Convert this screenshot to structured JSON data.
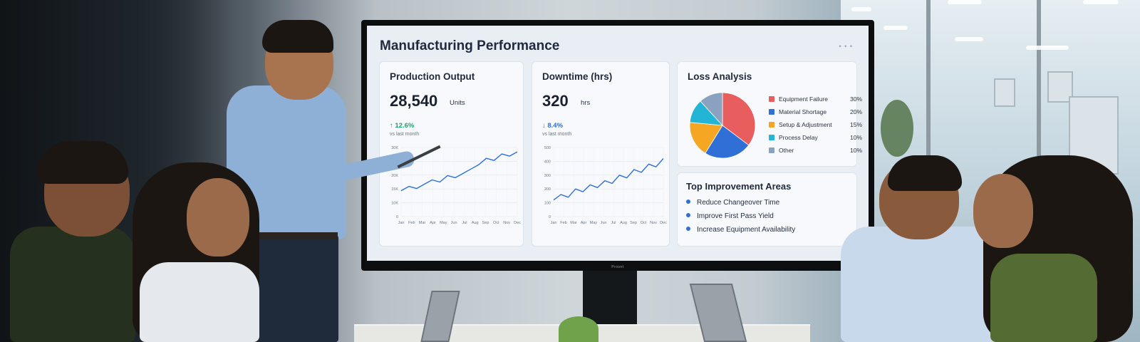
{
  "dashboard": {
    "title": "Manufacturing Performance",
    "brand": "Prosnt",
    "production": {
      "title": "Production Output",
      "value": "28,540",
      "unit": "Units",
      "delta": "↑ 12.6%",
      "delta_note": "vs last month",
      "y_ticks": [
        "30K",
        "25K",
        "20K",
        "15K",
        "10K",
        "0"
      ],
      "months": [
        "Jan",
        "Feb",
        "Mar",
        "Apr",
        "May",
        "Jun",
        "Jul",
        "Aug",
        "Sep",
        "Oct",
        "Nov",
        "Dec"
      ],
      "series": [
        12,
        14,
        13,
        15,
        17,
        16,
        19,
        18,
        20,
        22,
        24,
        27,
        26,
        29,
        28,
        30
      ]
    },
    "downtime": {
      "title": "Downtime (hrs)",
      "value": "320",
      "unit": "hrs",
      "delta": "↓ 8.4%",
      "delta_note": "vs last month",
      "y_ticks": [
        "500",
        "400",
        "300",
        "200",
        "100",
        "0"
      ],
      "months": [
        "Jan",
        "Feb",
        "Mar",
        "Apr",
        "May",
        "Jun",
        "Jul",
        "Aug",
        "Sep",
        "Oct",
        "Nov",
        "Dec"
      ],
      "series": [
        120,
        160,
        140,
        200,
        180,
        230,
        210,
        260,
        240,
        300,
        280,
        340,
        320,
        380,
        360,
        420
      ]
    },
    "loss": {
      "title": "Loss Analysis",
      "items": [
        {
          "label": "Equipment Failure",
          "value": "30%",
          "pct": 30,
          "color": "#e85d5d"
        },
        {
          "label": "Material Shortage",
          "value": "20%",
          "pct": 20,
          "color": "#2f6fd6"
        },
        {
          "label": "Setup & Adjustment",
          "value": "15%",
          "pct": 15,
          "color": "#f5a623"
        },
        {
          "label": "Process Delay",
          "value": "10%",
          "pct": 10,
          "color": "#22b5d6"
        },
        {
          "label": "Other",
          "value": "10%",
          "pct": 10,
          "color": "#8aa2c0"
        }
      ]
    },
    "improvement": {
      "title": "Top Improvement Areas",
      "items": [
        "Reduce Changeover Time",
        "Improve First Pass Yield",
        "Increase Equipment Availability"
      ]
    }
  },
  "colors": {
    "line": "#2f6fd6",
    "up": "#1fa36a",
    "screen_bg": "#e9eef5"
  }
}
